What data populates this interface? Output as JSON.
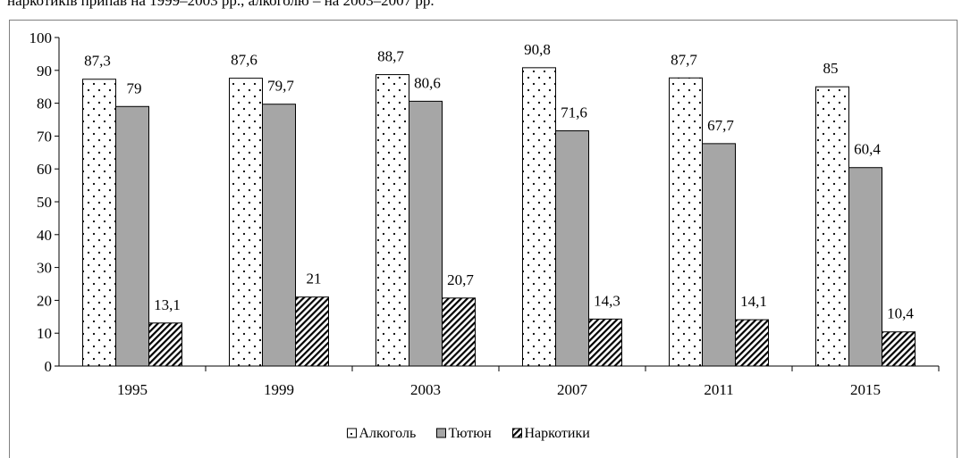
{
  "document_text": "наркотиків припав на 1999–2003 рр., алкоголю – на 2003–2007 рр.",
  "chart_data": {
    "type": "bar",
    "categories": [
      "1995",
      "1999",
      "2003",
      "2007",
      "2011",
      "2015"
    ],
    "series": [
      {
        "name": "Алкоголь",
        "color": "#ffffff",
        "pattern": "dots",
        "values": [
          87.3,
          87.6,
          88.7,
          90.8,
          87.7,
          85
        ],
        "value_labels": [
          "87,3",
          "87,6",
          "88,7",
          "90,8",
          "87,7",
          "85"
        ]
      },
      {
        "name": "Тютюн",
        "color": "#a6a6a6",
        "pattern": "solid",
        "values": [
          79,
          79.7,
          80.6,
          71.6,
          67.7,
          60.4
        ],
        "value_labels": [
          "79",
          "79,7",
          "80,6",
          "71,6",
          "67,7",
          "60,4"
        ]
      },
      {
        "name": "Наркотики",
        "color": "#ffffff",
        "pattern": "hatch",
        "values": [
          13.1,
          21,
          20.7,
          14.3,
          14.1,
          10.4
        ],
        "value_labels": [
          "13,1",
          "21",
          "20,7",
          "14,3",
          "14,1",
          "10,4"
        ]
      }
    ],
    "ylim": [
      0,
      100
    ],
    "yticks": [
      0,
      10,
      20,
      30,
      40,
      50,
      60,
      70,
      80,
      90,
      100
    ],
    "legend": "bottom"
  }
}
